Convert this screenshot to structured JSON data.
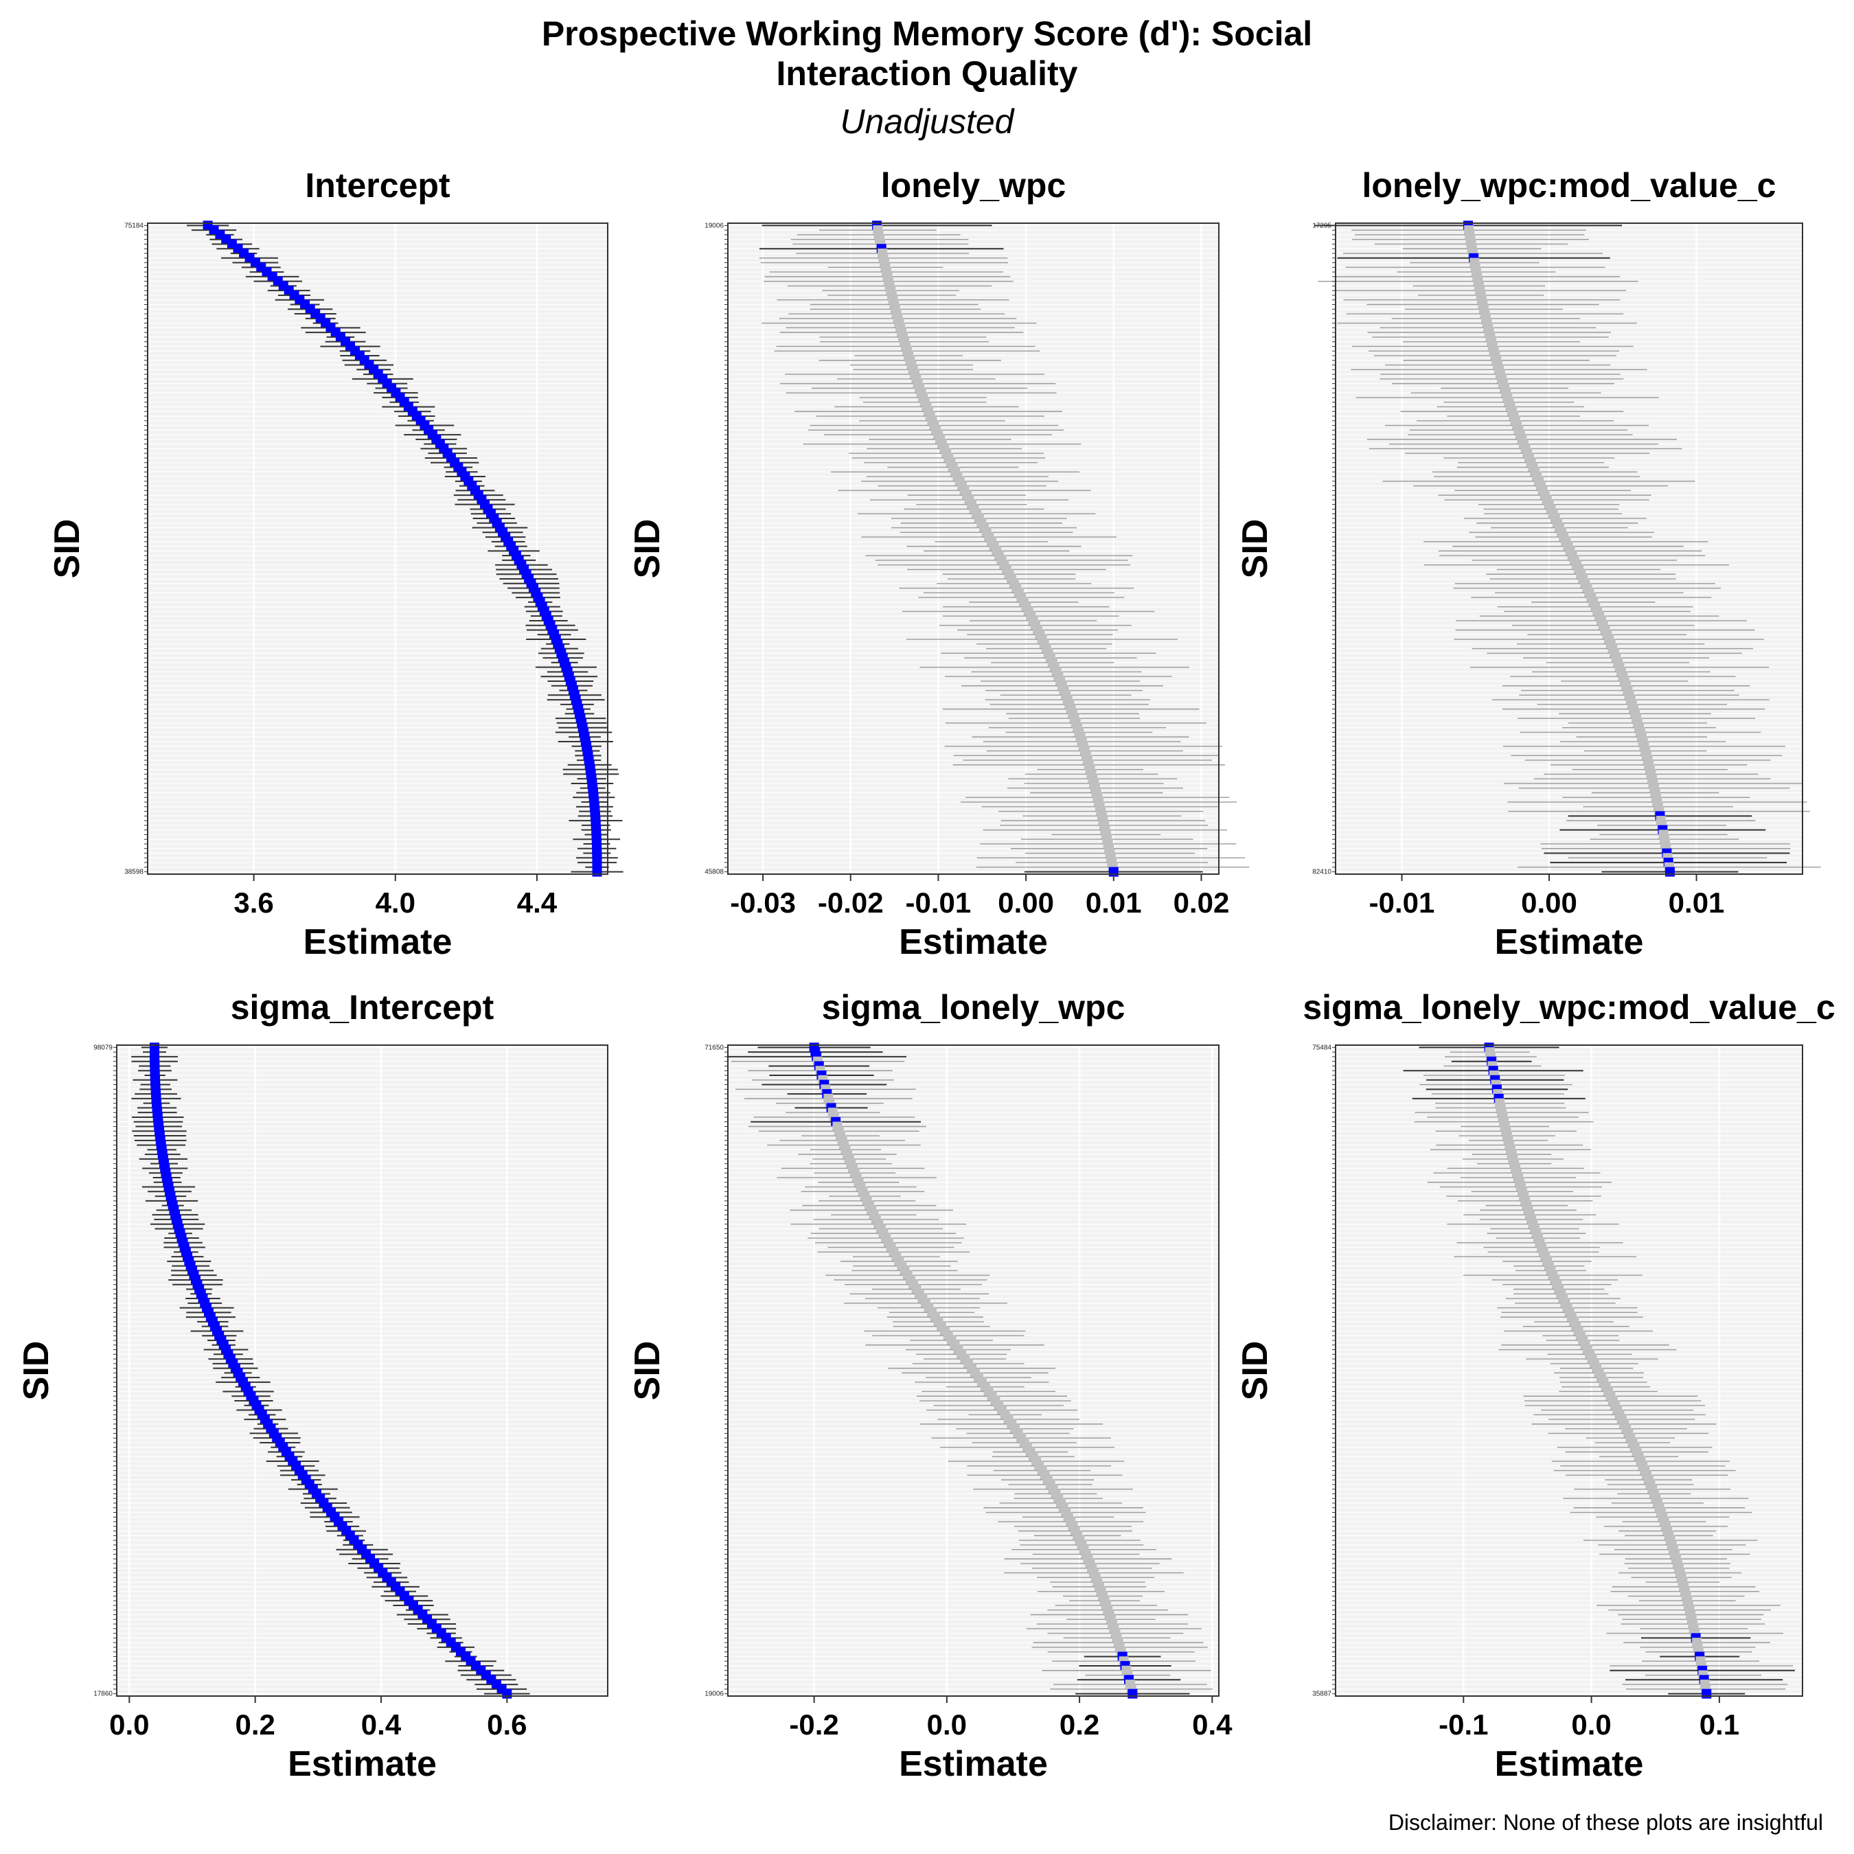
{
  "title_line1": "Prospective Working Memory Score (d'): Social",
  "title_line2": "Interaction Quality",
  "subtitle": "Unadjusted",
  "disclaimer": "Disclaimer: None of these plots are insightful",
  "colors": {
    "significant": "#0000ff",
    "nonsignificant": "#c0c0c0",
    "interval": "#555555",
    "panel_bg": "#f2f2f2"
  },
  "chart_data": [
    {
      "type": "scatter",
      "title": "Intercept",
      "xlabel": "Estimate",
      "ylabel": "SID",
      "xlim": [
        3.3,
        4.6
      ],
      "xticks": [
        3.6,
        4.0,
        4.4
      ],
      "tick_labels": [
        "3.6",
        "4.0",
        "4.4"
      ],
      "n_subjects": 140,
      "estimate_range": [
        3.47,
        4.57
      ],
      "interval_halfwidth": 0.06,
      "curve": "concave",
      "significant": "all",
      "first_sid": "75184",
      "last_sid": "38598"
    },
    {
      "type": "scatter",
      "title": "lonely_wpc",
      "xlabel": "Estimate",
      "ylabel": "SID",
      "xlim": [
        -0.034,
        0.022
      ],
      "xticks": [
        -0.03,
        -0.02,
        -0.01,
        0.0,
        0.01,
        0.02
      ],
      "tick_labels": [
        "-0.03",
        "-0.02",
        "-0.01",
        "0.00",
        "0.01",
        "0.02"
      ],
      "n_subjects": 140,
      "estimate_range": [
        -0.017,
        0.01
      ],
      "interval_halfwidth": 0.011,
      "curve": "s",
      "significant": [
        0,
        5,
        139
      ],
      "first_sid": "19006",
      "last_sid": "45808"
    },
    {
      "type": "scatter",
      "title": "lonely_wpc:mod_value_c",
      "xlabel": "Estimate",
      "ylabel": "SID",
      "xlim": [
        -0.0145,
        0.0172
      ],
      "xticks": [
        -0.01,
        0.0,
        0.01
      ],
      "tick_labels": [
        "-0.01",
        "0.00",
        "0.01"
      ],
      "n_subjects": 140,
      "estimate_range": [
        -0.0055,
        0.0082
      ],
      "interval_halfwidth": 0.0075,
      "curve": "s",
      "significant": [
        0,
        7,
        127,
        130,
        135,
        137,
        139
      ],
      "first_sid": "17295",
      "last_sid": "82410"
    },
    {
      "type": "scatter",
      "title": "sigma_Intercept",
      "xlabel": "Estimate",
      "ylabel": "SID",
      "xlim": [
        -0.02,
        0.76
      ],
      "xticks": [
        0.0,
        0.2,
        0.4,
        0.6
      ],
      "tick_labels": [
        "0.0",
        "0.2",
        "0.4",
        "0.6"
      ],
      "n_subjects": 140,
      "estimate_range": [
        0.04,
        0.6
      ],
      "interval_halfwidth": 0.03,
      "curve": "convex",
      "significant": "all",
      "first_sid": "98079",
      "last_sid": "17860"
    },
    {
      "type": "scatter",
      "title": "sigma_lonely_wpc",
      "xlabel": "Estimate",
      "ylabel": "SID",
      "xlim": [
        -0.33,
        0.41
      ],
      "xticks": [
        -0.2,
        0.0,
        0.2,
        0.4
      ],
      "tick_labels": [
        "-0.2",
        "0.0",
        "0.2",
        "0.4"
      ],
      "n_subjects": 140,
      "estimate_range": [
        -0.2,
        0.28
      ],
      "interval_halfwidth": 0.095,
      "curve": "s",
      "significant": [
        0,
        1,
        2,
        4,
        6,
        8,
        10,
        13,
        16,
        131,
        133,
        136,
        139
      ],
      "first_sid": "71650",
      "last_sid": "19006"
    },
    {
      "type": "scatter",
      "title": "sigma_lonely_wpc:mod_value_c",
      "xlabel": "Estimate",
      "ylabel": "SID",
      "xlim": [
        -0.2,
        0.165
      ],
      "xticks": [
        -0.1,
        0.0,
        0.1
      ],
      "tick_labels": [
        "-0.1",
        "0.0",
        "0.1"
      ],
      "n_subjects": 140,
      "estimate_range": [
        -0.08,
        0.09
      ],
      "interval_halfwidth": 0.05,
      "curve": "s",
      "significant": [
        0,
        3,
        5,
        7,
        9,
        11,
        127,
        131,
        134,
        136,
        139
      ],
      "first_sid": "75484",
      "last_sid": "35887"
    }
  ]
}
